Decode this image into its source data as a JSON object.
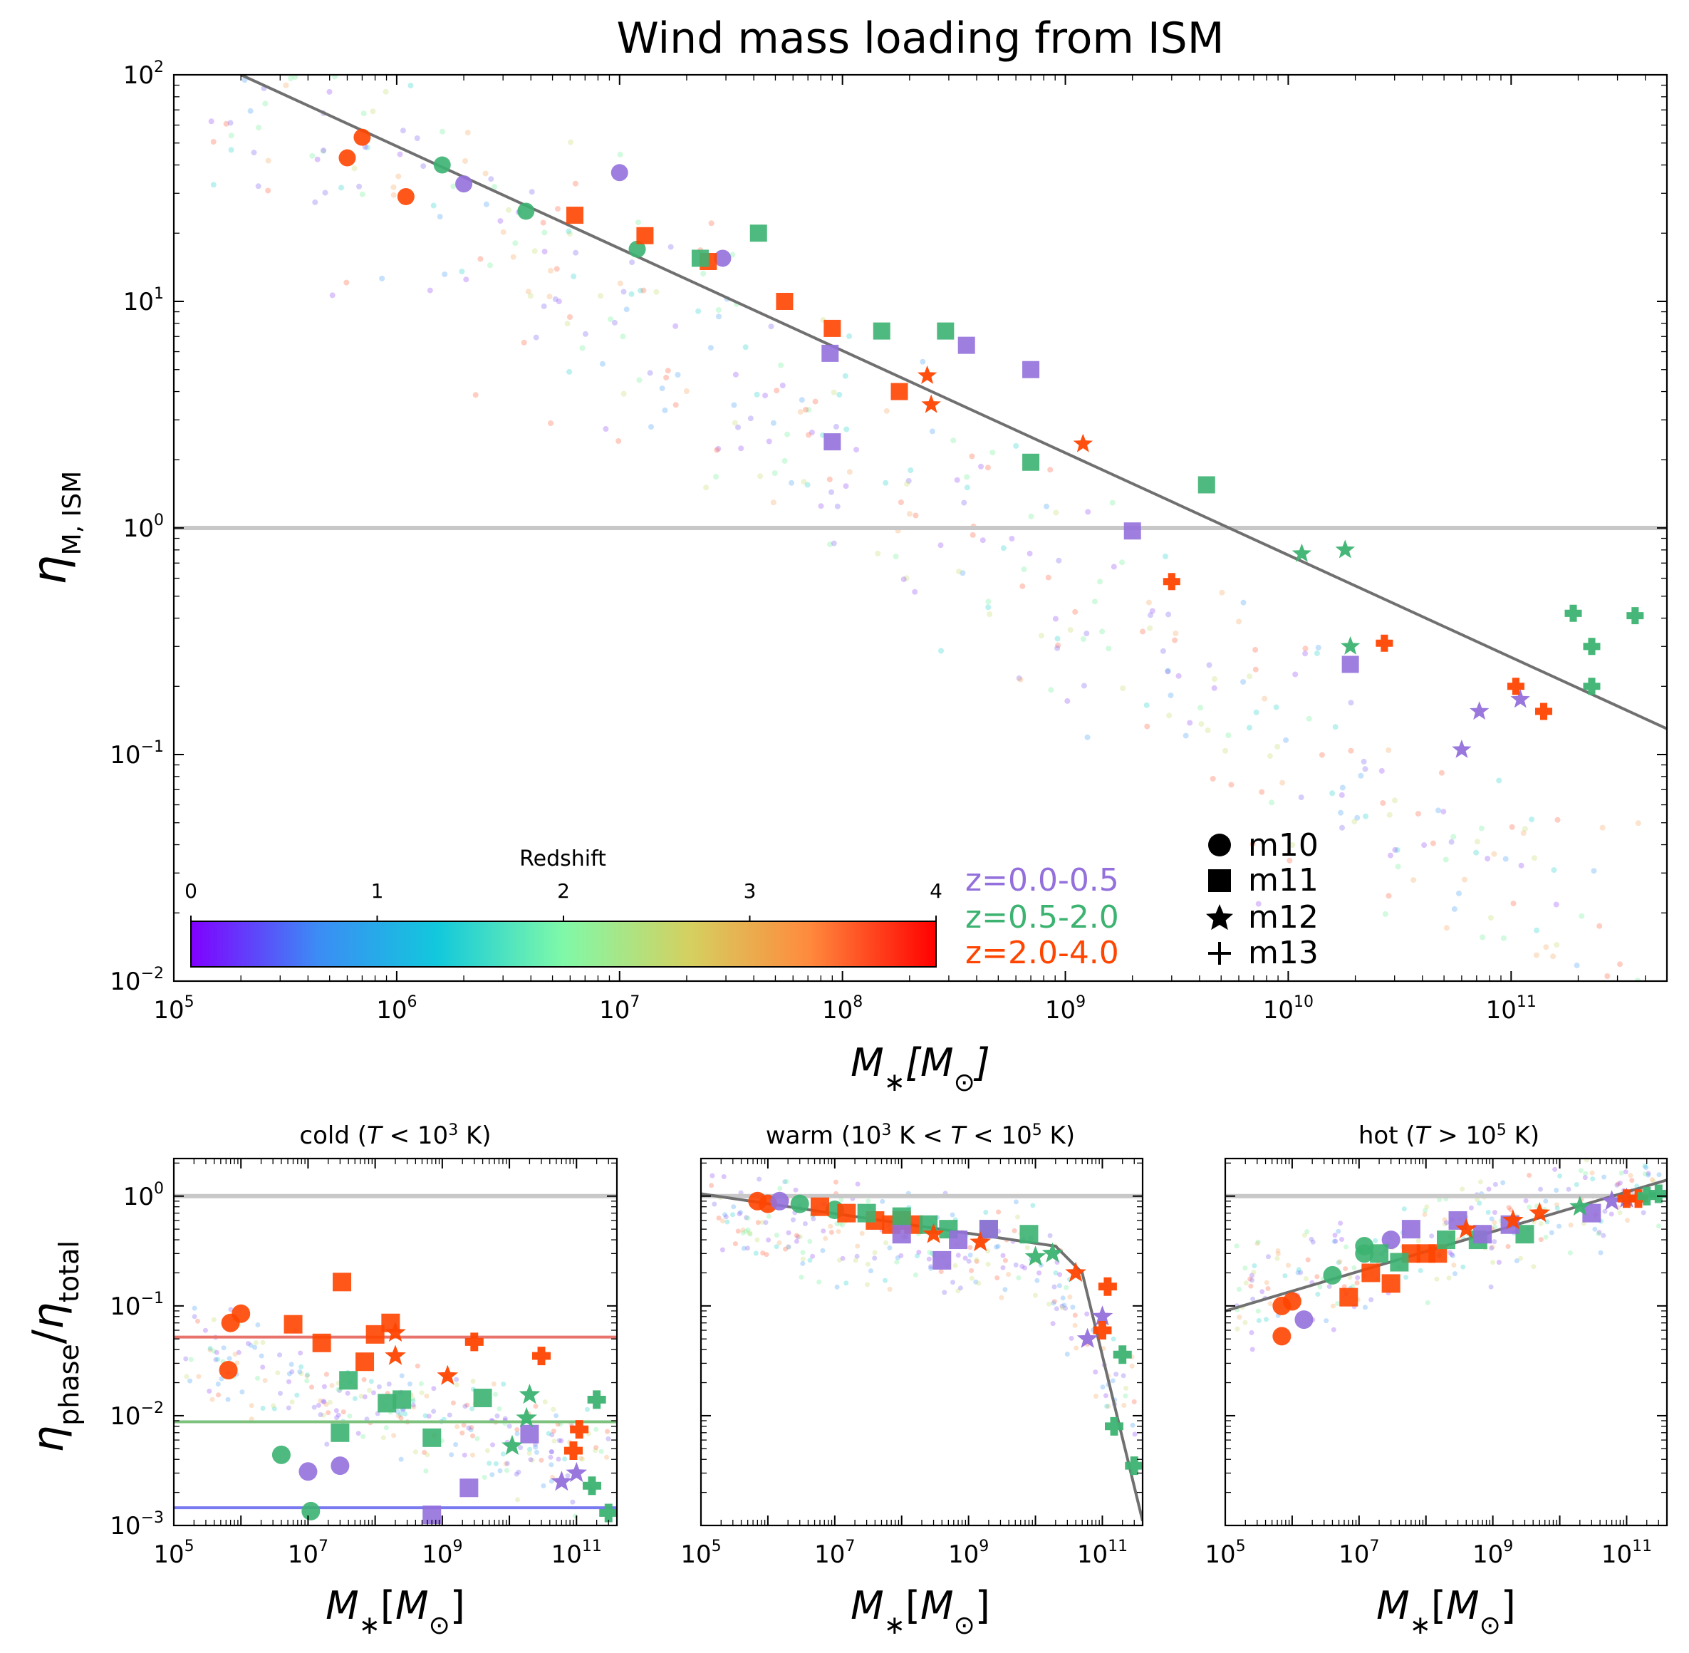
{
  "chart_data": [
    {
      "id": "main",
      "type": "scatter",
      "title": "Wind mass loading from ISM",
      "xlabel": "M_*[M_⊙]",
      "ylabel": "η_{M, ISM}",
      "xscale": "log",
      "yscale": "log",
      "xlim": [
        100000,
        500000000000
      ],
      "ylim": [
        0.01,
        100
      ],
      "x_ticks": [
        "10^5",
        "10^6",
        "10^7",
        "10^8",
        "10^9",
        "10^10",
        "10^11"
      ],
      "y_ticks": [
        "10^-2",
        "10^-1",
        "10^0",
        "10^1",
        "10^2"
      ],
      "reference_line": {
        "y": 1.0,
        "color": "#c8c8c8"
      },
      "fit_line": {
        "x": [
          200000,
          500000000000
        ],
        "y": [
          100,
          0.13
        ],
        "color": "#707070"
      },
      "colorbar": {
        "label": "Redshift",
        "min": 0,
        "max": 4,
        "ticks": [
          "0",
          "1",
          "2",
          "3",
          "4"
        ],
        "colormap": "rainbow"
      },
      "redshift_legend": [
        {
          "label": "z=0.0-0.5",
          "color": "#9370db"
        },
        {
          "label": "z=0.5-2.0",
          "color": "#3cb371"
        },
        {
          "label": "z=2.0-4.0",
          "color": "#ff4500"
        }
      ],
      "marker_legend": [
        {
          "symbol": "circle",
          "label": "m10"
        },
        {
          "symbol": "square",
          "label": "m11"
        },
        {
          "symbol": "star",
          "label": "m12"
        },
        {
          "symbol": "plus",
          "label": "m13"
        }
      ],
      "series": [
        {
          "name": "m10",
          "marker": "circle",
          "points": [
            [
              600000,
              43,
              "z2"
            ],
            [
              700000,
              53,
              "z2"
            ],
            [
              1100000,
              29,
              "z2"
            ],
            [
              1600000,
              40,
              "z1"
            ],
            [
              3800000,
              25,
              "z1"
            ],
            [
              12000000,
              17,
              "z1"
            ],
            [
              2000000,
              33,
              "z0"
            ],
            [
              10000000,
              37,
              "z0"
            ],
            [
              29000000,
              15.5,
              "z0"
            ]
          ]
        },
        {
          "name": "m11",
          "marker": "square",
          "points": [
            [
              6300000,
              24,
              "z2"
            ],
            [
              13000000,
              19.5,
              "z2"
            ],
            [
              25000000,
              15,
              "z2"
            ],
            [
              55000000,
              10,
              "z2"
            ],
            [
              90000000,
              7.6,
              "z2"
            ],
            [
              180000000,
              4.0,
              "z2"
            ],
            [
              23000000,
              15.5,
              "z1"
            ],
            [
              42000000,
              20,
              "z1"
            ],
            [
              150000000,
              7.4,
              "z1"
            ],
            [
              290000000,
              7.4,
              "z1"
            ],
            [
              700000000,
              1.95,
              "z1"
            ],
            [
              4300000000,
              1.55,
              "z1"
            ],
            [
              88000000,
              5.9,
              "z0"
            ],
            [
              90000000,
              2.4,
              "z0"
            ],
            [
              360000000,
              6.4,
              "z0"
            ],
            [
              700000000,
              5.0,
              "z0"
            ],
            [
              2000000000,
              0.97,
              "z0"
            ],
            [
              19000000000,
              0.25,
              "z0"
            ]
          ]
        },
        {
          "name": "m12",
          "marker": "star",
          "points": [
            [
              240000000,
              4.7,
              "z2"
            ],
            [
              250000000,
              3.5,
              "z2"
            ],
            [
              1200000000,
              2.35,
              "z2"
            ],
            [
              11500000000,
              0.77,
              "z1"
            ],
            [
              18000000000,
              0.8,
              "z1"
            ],
            [
              19000000000,
              0.3,
              "z1"
            ],
            [
              60000000000,
              0.105,
              "z0"
            ],
            [
              72000000000,
              0.155,
              "z0"
            ],
            [
              110000000000,
              0.175,
              "z0"
            ]
          ]
        },
        {
          "name": "m13",
          "marker": "plus",
          "points": [
            [
              3000000000,
              0.58,
              "z2"
            ],
            [
              27000000000,
              0.31,
              "z2"
            ],
            [
              105000000000,
              0.2,
              "z2"
            ],
            [
              140000000000,
              0.155,
              "z2"
            ],
            [
              190000000000,
              0.42,
              "z1"
            ],
            [
              230000000000,
              0.3,
              "z1"
            ],
            [
              230000000000,
              0.2,
              "z1"
            ],
            [
              360000000000,
              0.41,
              "z1"
            ]
          ]
        }
      ]
    },
    {
      "id": "cold",
      "type": "scatter",
      "title": "cold (T < 10^3 K)",
      "xlabel": "M_*[M_⊙]",
      "ylabel": "η_phase/η_total",
      "xscale": "log",
      "yscale": "log",
      "xlim": [
        100000,
        400000000000
      ],
      "ylim": [
        0.001,
        2.2
      ],
      "x_ticks": [
        "10^5",
        "10^7",
        "10^9",
        "10^11"
      ],
      "y_ticks": [
        "10^-3",
        "10^-2",
        "10^-1",
        "10^0"
      ],
      "reference_line": {
        "y": 1.0
      },
      "mean_lines": [
        {
          "y": 0.052,
          "group": "z2",
          "color": "#e8736b"
        },
        {
          "y": 0.0088,
          "group": "z1",
          "color": "#7cc17c"
        },
        {
          "y": 0.00145,
          "group": "z0",
          "color": "#7a7af0"
        }
      ],
      "series": [
        {
          "name": "m10",
          "marker": "circle",
          "points": [
            [
              700000,
              0.07,
              "z2"
            ],
            [
              1000000,
              0.085,
              "z2"
            ],
            [
              650000,
              0.026,
              "z2"
            ],
            [
              4000000,
              0.0044,
              "z1"
            ],
            [
              11000000,
              0.00135,
              "z1"
            ],
            [
              10000000,
              0.0031,
              "z0"
            ],
            [
              30000000,
              0.0035,
              "z0"
            ]
          ]
        },
        {
          "name": "m11",
          "marker": "square",
          "points": [
            [
              6000000,
              0.068,
              "z2"
            ],
            [
              16000000,
              0.046,
              "z2"
            ],
            [
              32000000,
              0.165,
              "z2"
            ],
            [
              70000000,
              0.031,
              "z2"
            ],
            [
              100000000,
              0.055,
              "z2"
            ],
            [
              170000000,
              0.07,
              "z2"
            ],
            [
              40000000,
              0.021,
              "z1"
            ],
            [
              150000000,
              0.013,
              "z1"
            ],
            [
              250000000,
              0.014,
              "z1"
            ],
            [
              30000000,
              0.007,
              "z1"
            ],
            [
              700000000,
              0.0063,
              "z1"
            ],
            [
              4000000000,
              0.0145,
              "z1"
            ],
            [
              700000000,
              0.00125,
              "z0"
            ],
            [
              2500000000,
              0.0022,
              "z0"
            ],
            [
              20000000000,
              0.0068,
              "z0"
            ]
          ]
        },
        {
          "name": "m12",
          "marker": "star",
          "points": [
            [
              200000000,
              0.057,
              "z2"
            ],
            [
              200000000,
              0.035,
              "z2"
            ],
            [
              1200000000,
              0.023,
              "z2"
            ],
            [
              20000000000,
              0.0155,
              "z1"
            ],
            [
              18000000000,
              0.0095,
              "z1"
            ],
            [
              11000000000,
              0.0053,
              "z1"
            ],
            [
              60000000000,
              0.0025,
              "z0"
            ],
            [
              100000000000,
              0.003,
              "z0"
            ]
          ]
        },
        {
          "name": "m13",
          "marker": "plus",
          "points": [
            [
              3000000000,
              0.047,
              "z2"
            ],
            [
              30000000000,
              0.035,
              "z2"
            ],
            [
              110000000000,
              0.0075,
              "z2"
            ],
            [
              90000000000,
              0.0048,
              "z2"
            ],
            [
              200000000000,
              0.014,
              "z1"
            ],
            [
              170000000000,
              0.0023,
              "z1"
            ],
            [
              300000000000,
              0.0013,
              "z1"
            ]
          ]
        }
      ]
    },
    {
      "id": "warm",
      "type": "scatter",
      "title": "warm (10^3 K < T < 10^5 K)",
      "xlabel": "M_*[M_⊙]",
      "xscale": "log",
      "yscale": "log",
      "xlim": [
        100000,
        400000000000
      ],
      "ylim": [
        0.001,
        2.2
      ],
      "x_ticks": [
        "10^5",
        "10^7",
        "10^9",
        "10^11"
      ],
      "reference_line": {
        "y": 1.0
      },
      "fit_line": {
        "x": [
          100000,
          20000000000,
          50000000000,
          400000000000
        ],
        "y": [
          1.05,
          0.35,
          0.2,
          0.0011
        ],
        "color": "#707070"
      },
      "series": [
        {
          "name": "m10",
          "marker": "circle",
          "points": [
            [
              700000,
              0.9,
              "z2"
            ],
            [
              1000000,
              0.85,
              "z2"
            ],
            [
              1500000,
              0.9,
              "z0"
            ],
            [
              3000000,
              0.85,
              "z1"
            ],
            [
              10000000,
              0.75,
              "z1"
            ]
          ]
        },
        {
          "name": "m11",
          "marker": "square",
          "points": [
            [
              6000000,
              0.8,
              "z2"
            ],
            [
              15000000,
              0.7,
              "z2"
            ],
            [
              40000000,
              0.6,
              "z2"
            ],
            [
              70000000,
              0.55,
              "z2"
            ],
            [
              100000000,
              0.6,
              "z2"
            ],
            [
              150000000,
              0.55,
              "z2"
            ],
            [
              30000000,
              0.7,
              "z1"
            ],
            [
              100000000,
              0.65,
              "z1"
            ],
            [
              250000000,
              0.55,
              "z1"
            ],
            [
              500000000,
              0.5,
              "z1"
            ],
            [
              2000000000,
              0.5,
              "z1"
            ],
            [
              8000000000,
              0.45,
              "z1"
            ],
            [
              100000000,
              0.45,
              "z0"
            ],
            [
              400000000,
              0.26,
              "z0"
            ],
            [
              700000000,
              0.4,
              "z0"
            ],
            [
              2000000000,
              0.5,
              "z0"
            ]
          ]
        },
        {
          "name": "m12",
          "marker": "star",
          "points": [
            [
              300000000,
              0.45,
              "z2"
            ],
            [
              1500000000,
              0.38,
              "z2"
            ],
            [
              40000000000,
              0.2,
              "z2"
            ],
            [
              10000000000,
              0.28,
              "z1"
            ],
            [
              18000000000,
              0.3,
              "z1"
            ],
            [
              60000000000,
              0.05,
              "z0"
            ],
            [
              100000000000,
              0.08,
              "z0"
            ]
          ]
        },
        {
          "name": "m13",
          "marker": "plus",
          "points": [
            [
              120000000000,
              0.15,
              "z2"
            ],
            [
              100000000000,
              0.06,
              "z2"
            ],
            [
              200000000000,
              0.036,
              "z1"
            ],
            [
              150000000000,
              0.008,
              "z1"
            ],
            [
              300000000000,
              0.0035,
              "z1"
            ]
          ]
        }
      ]
    },
    {
      "id": "hot",
      "type": "scatter",
      "title": "hot (T > 10^5 K)",
      "xlabel": "M_*[M_⊙]",
      "xscale": "log",
      "yscale": "log",
      "xlim": [
        100000,
        400000000000
      ],
      "ylim": [
        0.001,
        2.2
      ],
      "x_ticks": [
        "10^5",
        "10^7",
        "10^9",
        "10^11"
      ],
      "reference_line": {
        "y": 1.0
      },
      "fit_line": {
        "x": [
          100000,
          400000000000
        ],
        "y": [
          0.09,
          1.4
        ],
        "color": "#707070"
      },
      "series": [
        {
          "name": "m10",
          "marker": "circle",
          "points": [
            [
              700000,
              0.1,
              "z2"
            ],
            [
              1000000,
              0.11,
              "z2"
            ],
            [
              700000,
              0.053,
              "z2"
            ],
            [
              4000000,
              0.19,
              "z1"
            ],
            [
              12000000,
              0.35,
              "z1"
            ],
            [
              12000000,
              0.3,
              "z1"
            ],
            [
              1500000,
              0.075,
              "z0"
            ],
            [
              30000000,
              0.4,
              "z0"
            ]
          ]
        },
        {
          "name": "m11",
          "marker": "square",
          "points": [
            [
              7000000,
              0.12,
              "z2"
            ],
            [
              15000000,
              0.2,
              "z2"
            ],
            [
              30000000,
              0.16,
              "z2"
            ],
            [
              60000000,
              0.3,
              "z2"
            ],
            [
              100000000,
              0.3,
              "z2"
            ],
            [
              150000000,
              0.3,
              "z2"
            ],
            [
              20000000,
              0.3,
              "z1"
            ],
            [
              40000000,
              0.25,
              "z1"
            ],
            [
              200000000,
              0.4,
              "z1"
            ],
            [
              600000000,
              0.4,
              "z1"
            ],
            [
              3000000000,
              0.45,
              "z1"
            ],
            [
              60000000,
              0.5,
              "z0"
            ],
            [
              300000000,
              0.6,
              "z0"
            ],
            [
              700000000,
              0.45,
              "z0"
            ],
            [
              1800000000,
              0.55,
              "z0"
            ],
            [
              30000000000,
              0.7,
              "z0"
            ]
          ]
        },
        {
          "name": "m12",
          "marker": "star",
          "points": [
            [
              400000000,
              0.5,
              "z2"
            ],
            [
              2000000000,
              0.6,
              "z2"
            ],
            [
              5000000000,
              0.7,
              "z2"
            ],
            [
              20000000000,
              0.8,
              "z1"
            ],
            [
              60000000000,
              0.9,
              "z0"
            ],
            [
              100000000000,
              0.95,
              "z0"
            ]
          ]
        },
        {
          "name": "m13",
          "marker": "plus",
          "points": [
            [
              100000000000,
              0.95,
              "z2"
            ],
            [
              150000000000,
              0.95,
              "z2"
            ],
            [
              200000000000,
              1.0,
              "z1"
            ],
            [
              300000000000,
              1.05,
              "z1"
            ]
          ]
        }
      ]
    }
  ],
  "colors": {
    "z0": "#9370db",
    "z1": "#3cb371",
    "z2": "#ff4500",
    "fit": "#707070",
    "ref": "#c8c8c8"
  }
}
